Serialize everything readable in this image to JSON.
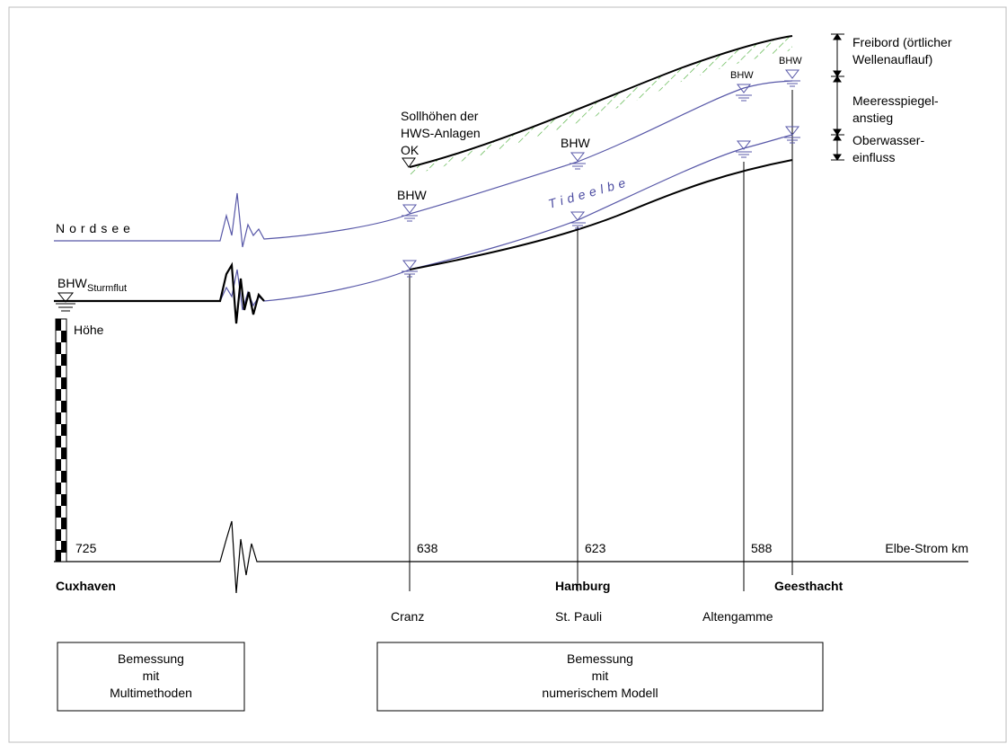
{
  "water_bodies": {
    "nordsee": "Nordsee",
    "tideelbe": "Tideelbe"
  },
  "water_levels": {
    "bhw_sturmflut_main": "BHW",
    "bhw_sturmflut_sub": "Sturmflut",
    "bhw_cranz": "BHW",
    "bhw_hamburg": "BHW",
    "bhw_altengamme": "BHW",
    "bhw_geesthacht": "BHW"
  },
  "dike": {
    "label_line1": "Sollhöhen der",
    "label_line2": "HWS-Anlagen",
    "label_line3": "OK"
  },
  "legend": {
    "freibord_line1": "Freibord (örtlicher",
    "freibord_line2": "Wellenauflauf)",
    "meeresspiegel_line1": "Meeresspiegel-",
    "meeresspiegel_line2": "anstieg",
    "oberwasser_line1": "Oberwasser-",
    "oberwasser_line2": "einfluss"
  },
  "height_scale_label": "Höhe",
  "river_km": {
    "axis_label": "Elbe-Strom km",
    "km_cuxhaven": "725",
    "km_cranz": "638",
    "km_hamburg": "623",
    "km_altengamme": "588"
  },
  "places": {
    "cuxhaven": "Cuxhaven",
    "hamburg": "Hamburg",
    "geesthacht": "Geesthacht",
    "cranz": "Cranz",
    "st_pauli": "St. Pauli",
    "altengamme": "Altengamme"
  },
  "boxes": {
    "multi_line1": "Bemessung",
    "multi_line2": "mit",
    "multi_line3": "Multimethoden",
    "num_line1": "Bemessung",
    "num_line2": "mit",
    "num_line3": "numerischem Modell"
  },
  "colors": {
    "blue_line": "#5858a8",
    "black_line": "#000000",
    "hatch_green": "#4caf3a"
  }
}
